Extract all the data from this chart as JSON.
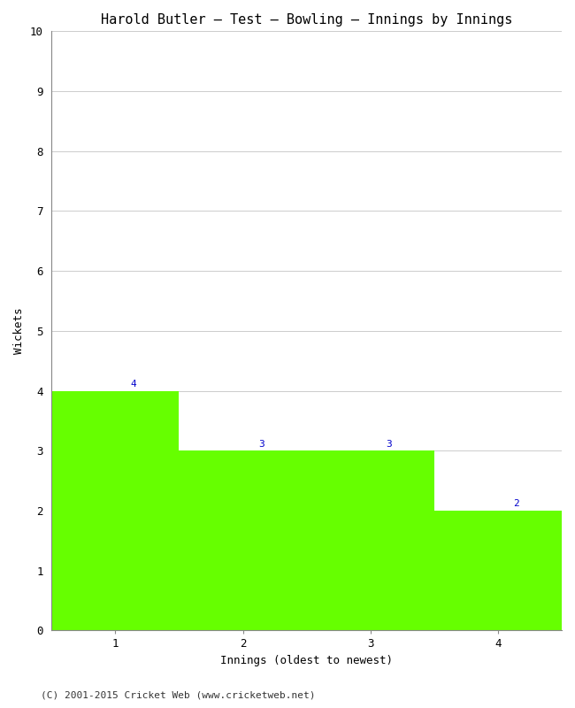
{
  "title": "Harold Butler – Test – Bowling – Innings by Innings",
  "xlabel": "Innings (oldest to newest)",
  "ylabel": "Wickets",
  "categories": [
    "1",
    "2",
    "3",
    "4"
  ],
  "values": [
    4,
    3,
    3,
    2
  ],
  "bar_color": "#66ff00",
  "bar_edge_color": "#66ff00",
  "label_color": "#0000cc",
  "ylim": [
    0,
    10
  ],
  "yticks": [
    0,
    1,
    2,
    3,
    4,
    5,
    6,
    7,
    8,
    9,
    10
  ],
  "background_color": "#ffffff",
  "grid_color": "#cccccc",
  "footer": "(C) 2001-2015 Cricket Web (www.cricketweb.net)",
  "title_fontsize": 11,
  "axis_label_fontsize": 9,
  "tick_fontsize": 9,
  "label_fontsize": 8,
  "footer_fontsize": 8
}
